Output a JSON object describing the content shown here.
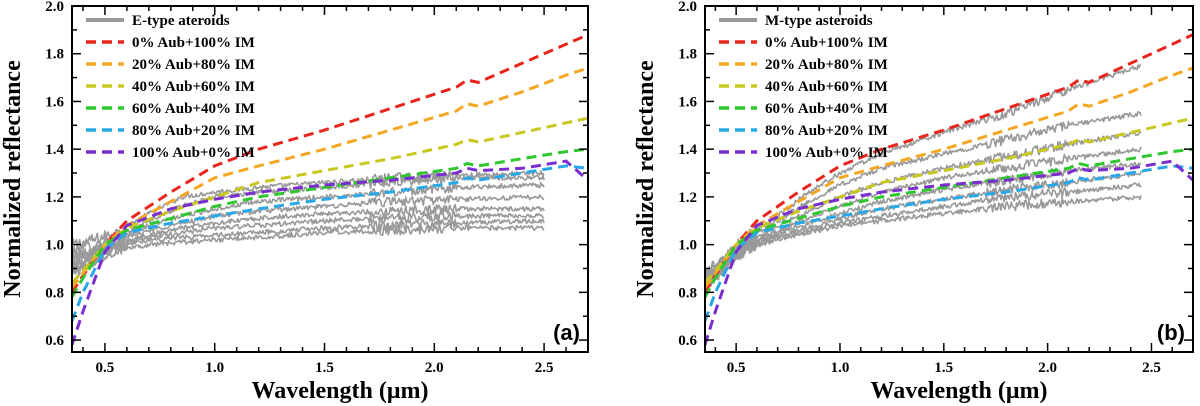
{
  "chart_data": [
    {
      "type": "line",
      "panel_label": "(a)",
      "xlabel": "Wavelength (μm)",
      "ylabel": "Normalized reflectance",
      "xlim": [
        0.35,
        2.7
      ],
      "ylim": [
        0.55,
        2.0
      ],
      "xticks": [
        0.5,
        1.0,
        1.5,
        2.0,
        2.5
      ],
      "xtick_labels": [
        "0.5",
        "1.0",
        "1.5",
        "2.0",
        "2.5"
      ],
      "yticks": [
        0.6,
        0.8,
        1.0,
        1.2,
        1.4,
        1.6,
        1.8,
        2.0
      ],
      "ytick_labels": [
        "0.6",
        "0.8",
        "1.0",
        "1.2",
        "1.4",
        "1.6",
        "1.8",
        "2.0"
      ],
      "legend": {
        "placement": "top-left"
      },
      "observed": {
        "name": "E-type ateroids",
        "color": "#999999",
        "spectra": [
          {
            "x": [
              0.35,
              0.45,
              0.55,
              0.7,
              0.85,
              1.0,
              1.2,
              1.5,
              1.8,
              2.1,
              2.5
            ],
            "y": [
              1.0,
              1.02,
              1.05,
              1.13,
              1.2,
              1.22,
              1.24,
              1.26,
              1.28,
              1.29,
              1.3
            ]
          },
          {
            "x": [
              0.35,
              0.45,
              0.55,
              0.7,
              0.85,
              1.0,
              1.2,
              1.5,
              1.8,
              2.1,
              2.5
            ],
            "y": [
              0.97,
              1.0,
              1.03,
              1.1,
              1.16,
              1.2,
              1.22,
              1.24,
              1.26,
              1.28,
              1.28
            ]
          },
          {
            "x": [
              0.35,
              0.45,
              0.55,
              0.7,
              0.85,
              1.0,
              1.2,
              1.5,
              1.8,
              2.1,
              2.5
            ],
            "y": [
              0.95,
              0.98,
              1.02,
              1.08,
              1.12,
              1.15,
              1.18,
              1.2,
              1.22,
              1.24,
              1.25
            ]
          },
          {
            "x": [
              0.35,
              0.45,
              0.55,
              0.7,
              0.85,
              1.0,
              1.2,
              1.5,
              1.8,
              2.1,
              2.5
            ],
            "y": [
              0.93,
              0.97,
              1.01,
              1.06,
              1.09,
              1.12,
              1.14,
              1.16,
              1.18,
              1.19,
              1.2
            ]
          },
          {
            "x": [
              0.35,
              0.45,
              0.55,
              0.7,
              0.85,
              1.0,
              1.2,
              1.5,
              1.8,
              2.1,
              2.5
            ],
            "y": [
              0.92,
              0.96,
              1.0,
              1.04,
              1.07,
              1.09,
              1.11,
              1.13,
              1.14,
              1.15,
              1.15
            ]
          },
          {
            "x": [
              0.35,
              0.45,
              0.55,
              0.7,
              0.85,
              1.0,
              1.2,
              1.5,
              1.8,
              2.1,
              2.5
            ],
            "y": [
              0.9,
              0.95,
              1.0,
              1.03,
              1.05,
              1.07,
              1.08,
              1.1,
              1.11,
              1.12,
              1.12
            ]
          },
          {
            "x": [
              0.35,
              0.45,
              0.55,
              0.7,
              0.85,
              1.0,
              1.2,
              1.5,
              1.8,
              2.1,
              2.5
            ],
            "y": [
              0.9,
              0.94,
              0.99,
              1.02,
              1.03,
              1.04,
              1.05,
              1.07,
              1.08,
              1.09,
              1.1
            ]
          },
          {
            "x": [
              0.35,
              0.45,
              0.55,
              0.7,
              0.85,
              1.0,
              1.2,
              1.5,
              1.8,
              2.1,
              2.5
            ],
            "y": [
              0.88,
              0.93,
              0.98,
              1.0,
              1.01,
              1.02,
              1.03,
              1.05,
              1.06,
              1.07,
              1.07
            ]
          }
        ]
      },
      "series": [
        {
          "name": "0% Aub+100% IM",
          "color": "#e8241c",
          "x": [
            0.35,
            0.4,
            0.5,
            0.6,
            0.8,
            1.0,
            1.2,
            1.5,
            1.8,
            2.1,
            2.15,
            2.2,
            2.4,
            2.6,
            2.7
          ],
          "y": [
            0.8,
            0.87,
            1.0,
            1.1,
            1.22,
            1.33,
            1.4,
            1.48,
            1.57,
            1.66,
            1.69,
            1.68,
            1.76,
            1.84,
            1.88
          ]
        },
        {
          "name": "20% Aub+80% IM",
          "color": "#f5a623",
          "x": [
            0.35,
            0.4,
            0.5,
            0.6,
            0.8,
            1.0,
            1.2,
            1.5,
            1.8,
            2.1,
            2.15,
            2.2,
            2.4,
            2.6,
            2.7
          ],
          "y": [
            0.82,
            0.88,
            1.0,
            1.08,
            1.18,
            1.28,
            1.33,
            1.4,
            1.48,
            1.56,
            1.59,
            1.58,
            1.64,
            1.71,
            1.74
          ]
        },
        {
          "name": "40% Aub+60% IM",
          "color": "#c8c820",
          "x": [
            0.35,
            0.4,
            0.5,
            0.6,
            0.8,
            1.0,
            1.2,
            1.5,
            1.8,
            2.1,
            2.15,
            2.2,
            2.4,
            2.6,
            2.7
          ],
          "y": [
            0.84,
            0.89,
            1.0,
            1.07,
            1.14,
            1.2,
            1.26,
            1.31,
            1.36,
            1.42,
            1.44,
            1.43,
            1.47,
            1.51,
            1.53
          ]
        },
        {
          "name": "60% Aub+40% IM",
          "color": "#2ec82e",
          "x": [
            0.35,
            0.4,
            0.5,
            0.6,
            0.8,
            1.0,
            1.2,
            1.5,
            1.8,
            2.1,
            2.15,
            2.2,
            2.4,
            2.6,
            2.7
          ],
          "y": [
            0.78,
            0.86,
            1.0,
            1.06,
            1.11,
            1.16,
            1.2,
            1.24,
            1.28,
            1.32,
            1.34,
            1.33,
            1.36,
            1.39,
            1.4
          ]
        },
        {
          "name": "80% Aub+20% IM",
          "color": "#28a8e8",
          "x": [
            0.35,
            0.4,
            0.5,
            0.6,
            0.8,
            1.0,
            1.2,
            1.5,
            1.8,
            2.1,
            2.15,
            2.2,
            2.4,
            2.6,
            2.7
          ],
          "y": [
            0.68,
            0.8,
            0.98,
            1.05,
            1.09,
            1.12,
            1.15,
            1.19,
            1.22,
            1.26,
            1.28,
            1.27,
            1.3,
            1.33,
            1.32
          ]
        },
        {
          "name": "100% Aub+0% IM",
          "color": "#7a2ed0",
          "x": [
            0.35,
            0.4,
            0.5,
            0.6,
            0.8,
            1.0,
            1.2,
            1.5,
            1.8,
            2.1,
            2.15,
            2.2,
            2.4,
            2.6,
            2.7
          ],
          "y": [
            0.58,
            0.72,
            0.97,
            1.08,
            1.15,
            1.19,
            1.22,
            1.25,
            1.27,
            1.3,
            1.32,
            1.31,
            1.32,
            1.35,
            1.27
          ]
        }
      ]
    },
    {
      "type": "line",
      "panel_label": "(b)",
      "xlabel": "Wavelength (μm)",
      "ylabel": "Normalized reflectance",
      "xlim": [
        0.35,
        2.7
      ],
      "ylim": [
        0.55,
        2.0
      ],
      "xticks": [
        0.5,
        1.0,
        1.5,
        2.0,
        2.5
      ],
      "xtick_labels": [
        "0.5",
        "1.0",
        "1.5",
        "2.0",
        "2.5"
      ],
      "yticks": [
        0.6,
        0.8,
        1.0,
        1.2,
        1.4,
        1.6,
        1.8,
        2.0
      ],
      "ytick_labels": [
        "0.6",
        "0.8",
        "1.0",
        "1.2",
        "1.4",
        "1.6",
        "1.8",
        "2.0"
      ],
      "legend": {
        "placement": "top-left"
      },
      "observed": {
        "name": "M-type asteroids",
        "color": "#999999",
        "spectra": [
          {
            "x": [
              0.35,
              0.45,
              0.55,
              0.7,
              0.85,
              1.0,
              1.2,
              1.5,
              1.8,
              2.1,
              2.45
            ],
            "y": [
              0.88,
              0.95,
              1.03,
              1.12,
              1.22,
              1.3,
              1.38,
              1.47,
              1.55,
              1.65,
              1.75
            ]
          },
          {
            "x": [
              0.35,
              0.45,
              0.55,
              0.7,
              0.85,
              1.0,
              1.2,
              1.5,
              1.8,
              2.1,
              2.45
            ],
            "y": [
              0.87,
              0.94,
              1.02,
              1.1,
              1.18,
              1.25,
              1.32,
              1.38,
              1.44,
              1.5,
              1.55
            ]
          },
          {
            "x": [
              0.35,
              0.45,
              0.55,
              0.7,
              0.85,
              1.0,
              1.2,
              1.5,
              1.8,
              2.1,
              2.45
            ],
            "y": [
              0.86,
              0.93,
              1.01,
              1.08,
              1.14,
              1.2,
              1.26,
              1.32,
              1.37,
              1.42,
              1.47
            ]
          },
          {
            "x": [
              0.35,
              0.45,
              0.55,
              0.7,
              0.85,
              1.0,
              1.2,
              1.5,
              1.8,
              2.1,
              2.45
            ],
            "y": [
              0.85,
              0.92,
              1.0,
              1.06,
              1.11,
              1.16,
              1.22,
              1.28,
              1.32,
              1.36,
              1.4
            ]
          },
          {
            "x": [
              0.35,
              0.45,
              0.55,
              0.7,
              0.85,
              1.0,
              1.2,
              1.5,
              1.8,
              2.1,
              2.45
            ],
            "y": [
              0.85,
              0.92,
              1.0,
              1.05,
              1.09,
              1.13,
              1.18,
              1.23,
              1.27,
              1.31,
              1.34
            ]
          },
          {
            "x": [
              0.35,
              0.45,
              0.55,
              0.7,
              0.85,
              1.0,
              1.2,
              1.5,
              1.8,
              2.1,
              2.45
            ],
            "y": [
              0.84,
              0.91,
              0.99,
              1.04,
              1.07,
              1.11,
              1.15,
              1.19,
              1.23,
              1.26,
              1.3
            ]
          },
          {
            "x": [
              0.35,
              0.45,
              0.55,
              0.7,
              0.85,
              1.0,
              1.2,
              1.5,
              1.8,
              2.1,
              2.45
            ],
            "y": [
              0.84,
              0.91,
              0.99,
              1.03,
              1.06,
              1.09,
              1.12,
              1.16,
              1.2,
              1.22,
              1.25
            ]
          },
          {
            "x": [
              0.35,
              0.45,
              0.55,
              0.7,
              0.85,
              1.0,
              1.2,
              1.5,
              1.8,
              2.1,
              2.45
            ],
            "y": [
              0.83,
              0.9,
              0.98,
              1.02,
              1.05,
              1.08,
              1.1,
              1.13,
              1.16,
              1.18,
              1.2
            ]
          }
        ]
      },
      "series": [
        {
          "name": "0% Aub+100% IM",
          "color": "#e8241c",
          "x": [
            0.35,
            0.4,
            0.5,
            0.6,
            0.8,
            1.0,
            1.2,
            1.5,
            1.8,
            2.1,
            2.15,
            2.2,
            2.4,
            2.6,
            2.7
          ],
          "y": [
            0.8,
            0.87,
            1.0,
            1.1,
            1.22,
            1.33,
            1.4,
            1.48,
            1.57,
            1.66,
            1.69,
            1.68,
            1.76,
            1.84,
            1.88
          ]
        },
        {
          "name": "20% Aub+80% IM",
          "color": "#f5a623",
          "x": [
            0.35,
            0.4,
            0.5,
            0.6,
            0.8,
            1.0,
            1.2,
            1.5,
            1.8,
            2.1,
            2.15,
            2.2,
            2.4,
            2.6,
            2.7
          ],
          "y": [
            0.82,
            0.88,
            1.0,
            1.08,
            1.18,
            1.28,
            1.33,
            1.4,
            1.48,
            1.56,
            1.59,
            1.58,
            1.64,
            1.71,
            1.74
          ]
        },
        {
          "name": "40% Aub+60% IM",
          "color": "#c8c820",
          "x": [
            0.35,
            0.4,
            0.5,
            0.6,
            0.8,
            1.0,
            1.2,
            1.5,
            1.8,
            2.1,
            2.15,
            2.2,
            2.4,
            2.6,
            2.7
          ],
          "y": [
            0.84,
            0.89,
            1.0,
            1.07,
            1.14,
            1.2,
            1.26,
            1.31,
            1.36,
            1.42,
            1.44,
            1.43,
            1.47,
            1.51,
            1.53
          ]
        },
        {
          "name": "60% Aub+40% IM",
          "color": "#2ec82e",
          "x": [
            0.35,
            0.4,
            0.5,
            0.6,
            0.8,
            1.0,
            1.2,
            1.5,
            1.8,
            2.1,
            2.15,
            2.2,
            2.4,
            2.6,
            2.7
          ],
          "y": [
            0.78,
            0.86,
            1.0,
            1.06,
            1.11,
            1.16,
            1.2,
            1.24,
            1.28,
            1.32,
            1.34,
            1.33,
            1.36,
            1.39,
            1.4
          ]
        },
        {
          "name": "80% Aub+20% IM",
          "color": "#28a8e8",
          "x": [
            0.35,
            0.4,
            0.5,
            0.6,
            0.8,
            1.0,
            1.2,
            1.5,
            1.8,
            2.1,
            2.15,
            2.2,
            2.4,
            2.6,
            2.7
          ],
          "y": [
            0.68,
            0.8,
            0.98,
            1.05,
            1.09,
            1.12,
            1.15,
            1.19,
            1.22,
            1.26,
            1.28,
            1.27,
            1.3,
            1.33,
            1.32
          ]
        },
        {
          "name": "100% Aub+0% IM",
          "color": "#7a2ed0",
          "x": [
            0.35,
            0.4,
            0.5,
            0.6,
            0.8,
            1.0,
            1.2,
            1.5,
            1.8,
            2.1,
            2.15,
            2.2,
            2.4,
            2.6,
            2.7
          ],
          "y": [
            0.58,
            0.72,
            0.97,
            1.08,
            1.15,
            1.19,
            1.22,
            1.25,
            1.27,
            1.3,
            1.32,
            1.31,
            1.32,
            1.35,
            1.27
          ]
        }
      ]
    }
  ]
}
